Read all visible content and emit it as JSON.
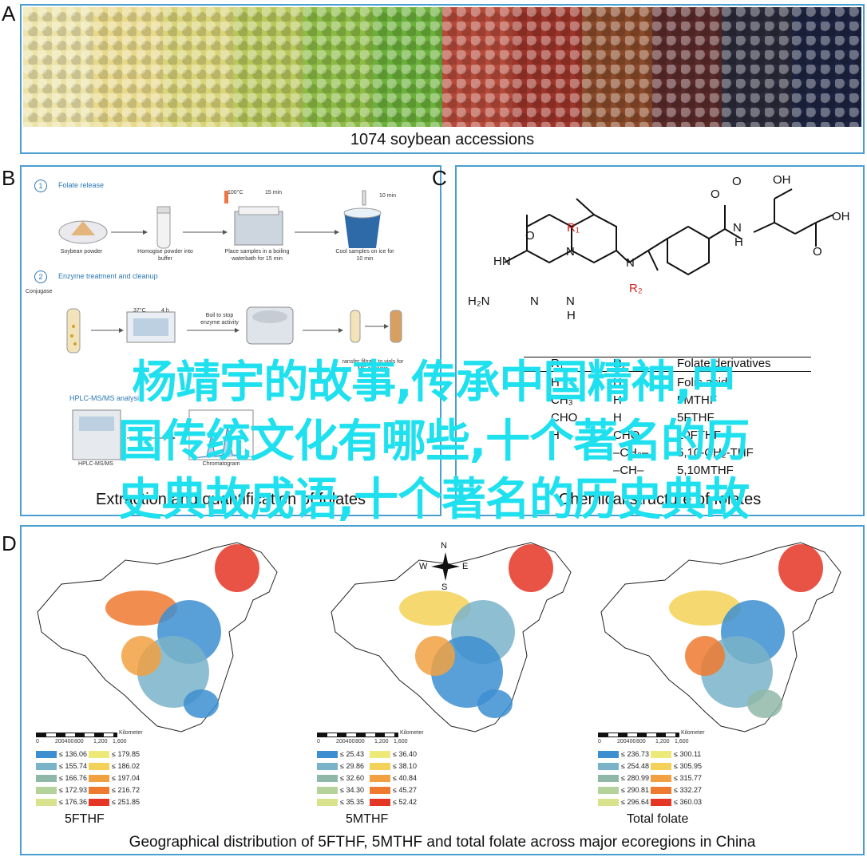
{
  "panels": {
    "a": {
      "letter": "A",
      "caption": "1074 soybean accessions",
      "bean_colors": [
        "#ece3a8",
        "#e8d98a",
        "#d9d478",
        "#b9c85a",
        "#8cbc44",
        "#6bb03a",
        "#b54a3a",
        "#9c3429",
        "#8a4a2a",
        "#5a2a2a",
        "#2a2a3a",
        "#1c2340"
      ]
    },
    "b": {
      "letter": "B",
      "caption": "Extraction and quantification of folates",
      "step1_title": "Folate release",
      "step1_items": [
        "Soybean powder",
        "Homogise powder into buffer",
        "Place samples in a boiling waterbath for 15 min",
        "Cool samples on ice for 10 min"
      ],
      "step1_labels": [
        "100°C",
        "15 min",
        "10 min"
      ],
      "step2_title": "Enzyme treatment and cleanup",
      "step2_items": [
        "Conjugase",
        "Boil to stop enzyme activity",
        "ransfer filtrate to vials for MS analysis"
      ],
      "step2_labels": [
        "37°C",
        "4 h"
      ],
      "step3_title": "HPLC-MS/MS analysis",
      "step3_items": [
        "HPLC-MS/MS",
        "Chromatogram"
      ]
    },
    "c": {
      "letter": "C",
      "caption": "Chemical structure of folates",
      "labels": {
        "h2n": "H₂N",
        "hn": "HN",
        "n1": "N",
        "n2": "N",
        "o": "O",
        "nh": "N",
        "h": "H",
        "r1": "R₁",
        "r2": "R₂",
        "oh1": "OH",
        "oh2": "OH",
        "o2": "O",
        "o3": "O",
        "o4": "O",
        "h2": "H"
      },
      "table_headers": [
        "R₁",
        "R₂",
        "Folate derivatives"
      ],
      "table_rows": [
        [
          "H",
          "H",
          "Folic acid"
        ],
        [
          "CH₃",
          "H",
          "5MTHF"
        ],
        [
          "CHO",
          "H",
          "5FTHF"
        ],
        [
          "H",
          "CHO",
          "10FTHF"
        ],
        [
          "",
          "–CH₂–",
          "5,10-CH₂-THF"
        ],
        [
          "",
          "–CH–",
          "5,10MTHF"
        ]
      ]
    },
    "d": {
      "letter": "D",
      "caption": "Geographical distribution of 5FTHF, 5MTHF and total folate across major ecoregions in China",
      "compass": {
        "n": "N",
        "s": "S",
        "e": "E",
        "w": "W"
      },
      "scale_label": "Kilometer",
      "scale_ticks": [
        "0",
        "200400",
        "800",
        "1,200",
        "1,600"
      ],
      "maps": [
        {
          "title": "5FTHF",
          "legend": [
            "≤ 136.06",
            "≤ 155.74",
            "≤ 166.76",
            "≤ 172.93",
            "≤ 176.36",
            "≤ 179.85",
            "≤ 186.02",
            "≤ 197.04",
            "≤ 216.72",
            "≤ 251.85"
          ]
        },
        {
          "title": "5MTHF",
          "legend": [
            "≤ 25.43",
            "≤ 29.86",
            "≤ 32.60",
            "≤ 34.30",
            "≤ 35.35",
            "≤ 36.40",
            "≤ 38.10",
            "≤ 40.84",
            "≤ 45.27",
            "≤ 52.42"
          ]
        },
        {
          "title": "Total folate",
          "legend": [
            "≤ 236.73",
            "≤ 254.48",
            "≤ 280.99",
            "≤ 290.81",
            "≤ 296.64",
            "≤ 300.11",
            "≤ 305.95",
            "≤ 315.77",
            "≤ 332.27",
            "≤ 360.03"
          ]
        }
      ],
      "legend_colors": [
        "#3d8fd1",
        "#7ab3c9",
        "#8fb8a8",
        "#b4d39a",
        "#d9e38d",
        "#eeea7a",
        "#f4d158",
        "#f1a142",
        "#ee7a30",
        "#e53524"
      ]
    }
  },
  "overlay_lines": [
    "杨靖宇的故事,传承中国精神,中",
    "国传统文化有哪些,十个著名的历",
    "史典故成语,十个著名的历史典故"
  ]
}
